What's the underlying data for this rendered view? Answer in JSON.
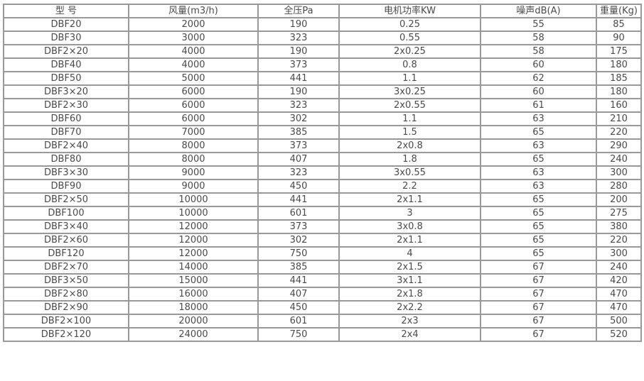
{
  "table": {
    "headers": [
      "型 号",
      "风量(m3/h)",
      "全压Pa",
      "电机功率KW",
      "噪声dB(A)",
      "重量(Kg)"
    ],
    "rows": [
      [
        "DBF20",
        "2000",
        "190",
        "0.25",
        "55",
        "85"
      ],
      [
        "DBF30",
        "3000",
        "323",
        "0.55",
        "58",
        "90"
      ],
      [
        "DBF2×20",
        "4000",
        "190",
        "2x0.25",
        "58",
        "175"
      ],
      [
        "DBF40",
        "4000",
        "373",
        "0.8",
        "60",
        "180"
      ],
      [
        "DBF50",
        "5000",
        "441",
        "1.1",
        "62",
        "185"
      ],
      [
        "DBF3×20",
        "6000",
        "190",
        "3x0.25",
        "60",
        "180"
      ],
      [
        "DBF2×30",
        "6000",
        "323",
        "2x0.55",
        "61",
        "160"
      ],
      [
        "DBF60",
        "6000",
        "302",
        "1.1",
        "63",
        "210"
      ],
      [
        "DBF70",
        "7000",
        "385",
        "1.5",
        "65",
        "220"
      ],
      [
        "DBF2×40",
        "8000",
        "373",
        "2x0.8",
        "63",
        "290"
      ],
      [
        "DBF80",
        "8000",
        "407",
        "1.8",
        "65",
        "240"
      ],
      [
        "DBF3×30",
        "9000",
        "323",
        "3x0.55",
        "63",
        "300"
      ],
      [
        "DBF90",
        "9000",
        "450",
        "2.2",
        "63",
        "280"
      ],
      [
        "DBF2×50",
        "10000",
        "441",
        "2x1.1",
        "65",
        "200"
      ],
      [
        "DBF100",
        "10000",
        "601",
        "3",
        "65",
        "275"
      ],
      [
        "DBF3×40",
        "12000",
        "373",
        "3x0.8",
        "65",
        "380"
      ],
      [
        "DBF2×60",
        "12000",
        "302",
        "2x1.1",
        "65",
        "220"
      ],
      [
        "DBF120",
        "12000",
        "750",
        "4",
        "65",
        "300"
      ],
      [
        "DBF2×70",
        "14000",
        "385",
        "2x1.5",
        "67",
        "240"
      ],
      [
        "DBF3×50",
        "15000",
        "441",
        "3x1.1",
        "67",
        "420"
      ],
      [
        "DBF2×80",
        "16000",
        "407",
        "2x1.8",
        "67",
        "470"
      ],
      [
        "DBF2×90",
        "18000",
        "450",
        "2x2.2",
        "67",
        "470"
      ],
      [
        "DBF2×100",
        "20000",
        "601",
        "2x3",
        "67",
        "500"
      ],
      [
        "DBF2×120",
        "24000",
        "750",
        "2x4",
        "67",
        "520"
      ]
    ]
  }
}
